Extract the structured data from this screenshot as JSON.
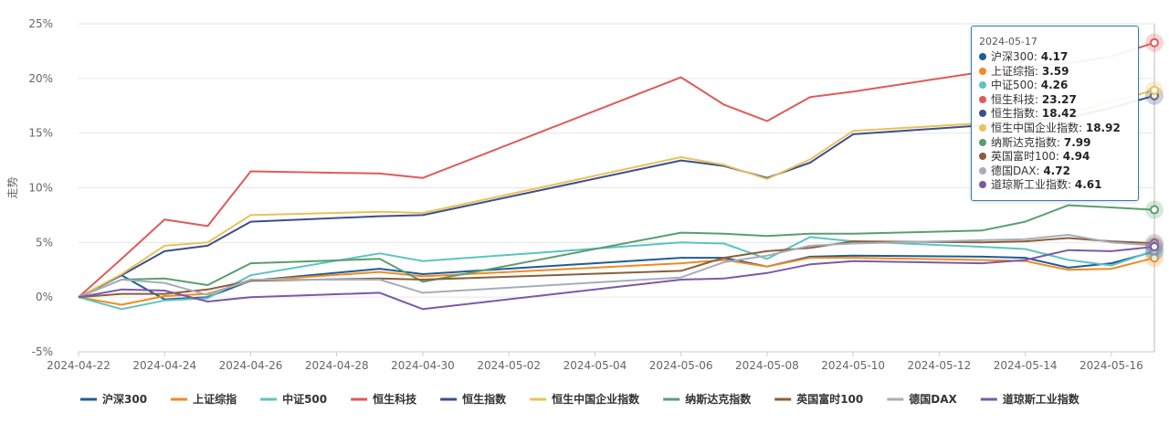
{
  "chart_data": {
    "type": "line",
    "title": "",
    "xlabel": "",
    "ylabel": "走势",
    "ylim": [
      -5,
      25
    ],
    "y_ticks": [
      "-5%",
      "0%",
      "5%",
      "10%",
      "15%",
      "20%",
      "25%"
    ],
    "x_tick_labels": [
      "2024-04-22",
      "2024-04-24",
      "2024-04-26",
      "2024-04-28",
      "2024-04-30",
      "2024-05-02",
      "2024-05-04",
      "2024-05-06",
      "2024-05-08",
      "2024-05-10",
      "2024-05-12",
      "2024-05-14",
      "2024-05-16"
    ],
    "x_range": [
      "2024-04-22",
      "2024-05-17"
    ],
    "grid": true,
    "legend_position": "bottom",
    "series": [
      {
        "name": "沪深300",
        "color": "#1f5c99",
        "points": [
          [
            "2024-04-22",
            0
          ],
          [
            "2024-04-23",
            2.0
          ],
          [
            "2024-04-24",
            -0.2
          ],
          [
            "2024-04-25",
            0
          ],
          [
            "2024-04-26",
            1.5
          ],
          [
            "2024-04-29",
            2.6
          ],
          [
            "2024-04-30",
            2.1
          ],
          [
            "2024-05-06",
            3.6
          ],
          [
            "2024-05-07",
            3.6
          ],
          [
            "2024-05-08",
            2.8
          ],
          [
            "2024-05-09",
            3.7
          ],
          [
            "2024-05-10",
            3.8
          ],
          [
            "2024-05-13",
            3.7
          ],
          [
            "2024-05-14",
            3.6
          ],
          [
            "2024-05-15",
            2.7
          ],
          [
            "2024-05-16",
            3.1
          ],
          [
            "2024-05-17",
            4.17
          ]
        ]
      },
      {
        "name": "上证综指",
        "color": "#f28a1e",
        "points": [
          [
            "2024-04-22",
            0
          ],
          [
            "2024-04-23",
            -0.7
          ],
          [
            "2024-04-24",
            0.1
          ],
          [
            "2024-04-25",
            0.3
          ],
          [
            "2024-04-26",
            1.5
          ],
          [
            "2024-04-29",
            2.3
          ],
          [
            "2024-04-30",
            1.9
          ],
          [
            "2024-05-06",
            3.1
          ],
          [
            "2024-05-07",
            3.4
          ],
          [
            "2024-05-08",
            2.8
          ],
          [
            "2024-05-09",
            3.6
          ],
          [
            "2024-05-10",
            3.6
          ],
          [
            "2024-05-13",
            3.4
          ],
          [
            "2024-05-14",
            3.3
          ],
          [
            "2024-05-15",
            2.5
          ],
          [
            "2024-05-16",
            2.6
          ],
          [
            "2024-05-17",
            3.59
          ]
        ]
      },
      {
        "name": "中证500",
        "color": "#5bc4c0",
        "points": [
          [
            "2024-04-22",
            0
          ],
          [
            "2024-04-23",
            -1.1
          ],
          [
            "2024-04-24",
            -0.3
          ],
          [
            "2024-04-25",
            -0.1
          ],
          [
            "2024-04-26",
            2.0
          ],
          [
            "2024-04-29",
            4.0
          ],
          [
            "2024-04-30",
            3.3
          ],
          [
            "2024-05-06",
            5.0
          ],
          [
            "2024-05-07",
            4.9
          ],
          [
            "2024-05-08",
            3.5
          ],
          [
            "2024-05-09",
            5.5
          ],
          [
            "2024-05-10",
            5.1
          ],
          [
            "2024-05-13",
            4.6
          ],
          [
            "2024-05-14",
            4.4
          ],
          [
            "2024-05-15",
            3.4
          ],
          [
            "2024-05-16",
            2.9
          ],
          [
            "2024-05-17",
            4.26
          ]
        ]
      },
      {
        "name": "恒生科技",
        "color": "#e05a5a",
        "points": [
          [
            "2024-04-22",
            0
          ],
          [
            "2024-04-23",
            3.5
          ],
          [
            "2024-04-24",
            7.1
          ],
          [
            "2024-04-25",
            6.5
          ],
          [
            "2024-04-26",
            11.5
          ],
          [
            "2024-04-29",
            11.3
          ],
          [
            "2024-04-30",
            10.9
          ],
          [
            "2024-05-06",
            20.1
          ],
          [
            "2024-05-07",
            17.6
          ],
          [
            "2024-05-08",
            16.1
          ],
          [
            "2024-05-09",
            18.3
          ],
          [
            "2024-05-10",
            18.8
          ],
          [
            "2024-05-13",
            20.6
          ],
          [
            "2024-05-14",
            21.1
          ],
          [
            "2024-05-15",
            21.4
          ],
          [
            "2024-05-16",
            22.0
          ],
          [
            "2024-05-17",
            23.27
          ]
        ]
      },
      {
        "name": "恒生指数",
        "color": "#3d4f8c",
        "points": [
          [
            "2024-04-22",
            0
          ],
          [
            "2024-04-23",
            2.0
          ],
          [
            "2024-04-24",
            4.2
          ],
          [
            "2024-04-25",
            4.7
          ],
          [
            "2024-04-26",
            6.9
          ],
          [
            "2024-04-29",
            7.4
          ],
          [
            "2024-04-30",
            7.5
          ],
          [
            "2024-05-06",
            12.5
          ],
          [
            "2024-05-07",
            12.0
          ],
          [
            "2024-05-08",
            10.9
          ],
          [
            "2024-05-09",
            12.3
          ],
          [
            "2024-05-10",
            14.9
          ],
          [
            "2024-05-13",
            15.7
          ],
          [
            "2024-05-14",
            16.1
          ],
          [
            "2024-05-15",
            16.4
          ],
          [
            "2024-05-16",
            17.3
          ],
          [
            "2024-05-17",
            18.42
          ]
        ]
      },
      {
        "name": "恒生中国企业指数",
        "color": "#e8c25a",
        "points": [
          [
            "2024-04-22",
            0
          ],
          [
            "2024-04-23",
            2.1
          ],
          [
            "2024-04-24",
            4.7
          ],
          [
            "2024-04-25",
            5.0
          ],
          [
            "2024-04-26",
            7.5
          ],
          [
            "2024-04-29",
            7.8
          ],
          [
            "2024-04-30",
            7.7
          ],
          [
            "2024-05-06",
            12.8
          ],
          [
            "2024-05-07",
            12.1
          ],
          [
            "2024-05-08",
            10.8
          ],
          [
            "2024-05-09",
            12.6
          ],
          [
            "2024-05-10",
            15.2
          ],
          [
            "2024-05-13",
            15.9
          ],
          [
            "2024-05-14",
            16.3
          ],
          [
            "2024-05-15",
            16.8
          ],
          [
            "2024-05-16",
            17.9
          ],
          [
            "2024-05-17",
            18.92
          ]
        ]
      },
      {
        "name": "纳斯达克指数",
        "color": "#5a9e6f",
        "points": [
          [
            "2024-04-22",
            0
          ],
          [
            "2024-04-23",
            1.6
          ],
          [
            "2024-04-24",
            1.7
          ],
          [
            "2024-04-25",
            1.1
          ],
          [
            "2024-04-26",
            3.1
          ],
          [
            "2024-04-29",
            3.5
          ],
          [
            "2024-04-30",
            1.4
          ],
          [
            "2024-05-06",
            5.9
          ],
          [
            "2024-05-07",
            5.8
          ],
          [
            "2024-05-08",
            5.6
          ],
          [
            "2024-05-09",
            5.8
          ],
          [
            "2024-05-10",
            5.8
          ],
          [
            "2024-05-13",
            6.1
          ],
          [
            "2024-05-14",
            6.9
          ],
          [
            "2024-05-15",
            8.4
          ],
          [
            "2024-05-16",
            8.2
          ],
          [
            "2024-05-17",
            7.99
          ]
        ]
      },
      {
        "name": "英国富时100",
        "color": "#8b5e3c",
        "points": [
          [
            "2024-04-22",
            0
          ],
          [
            "2024-04-23",
            0.3
          ],
          [
            "2024-04-24",
            0.3
          ],
          [
            "2024-04-25",
            0.7
          ],
          [
            "2024-04-26",
            1.5
          ],
          [
            "2024-04-29",
            1.7
          ],
          [
            "2024-04-30",
            1.6
          ],
          [
            "2024-05-06",
            2.4
          ],
          [
            "2024-05-07",
            3.6
          ],
          [
            "2024-05-08",
            4.2
          ],
          [
            "2024-05-09",
            4.5
          ],
          [
            "2024-05-10",
            5.1
          ],
          [
            "2024-05-13",
            5.0
          ],
          [
            "2024-05-14",
            5.1
          ],
          [
            "2024-05-15",
            5.4
          ],
          [
            "2024-05-16",
            5.1
          ],
          [
            "2024-05-17",
            4.94
          ]
        ]
      },
      {
        "name": "德国DAX",
        "color": "#a7adb8",
        "points": [
          [
            "2024-04-22",
            0
          ],
          [
            "2024-04-23",
            1.6
          ],
          [
            "2024-04-24",
            1.3
          ],
          [
            "2024-04-25",
            0.2
          ],
          [
            "2024-04-26",
            1.6
          ],
          [
            "2024-04-29",
            1.6
          ],
          [
            "2024-04-30",
            0.4
          ],
          [
            "2024-05-06",
            1.8
          ],
          [
            "2024-05-07",
            3.2
          ],
          [
            "2024-05-08",
            3.8
          ],
          [
            "2024-05-09",
            4.7
          ],
          [
            "2024-05-10",
            4.9
          ],
          [
            "2024-05-13",
            5.2
          ],
          [
            "2024-05-14",
            5.3
          ],
          [
            "2024-05-15",
            5.7
          ],
          [
            "2024-05-16",
            5.0
          ],
          [
            "2024-05-17",
            4.72
          ]
        ]
      },
      {
        "name": "道琼斯工业指数",
        "color": "#7a5aa6",
        "points": [
          [
            "2024-04-22",
            0
          ],
          [
            "2024-04-23",
            0.7
          ],
          [
            "2024-04-24",
            0.6
          ],
          [
            "2024-04-25",
            -0.4
          ],
          [
            "2024-04-26",
            0
          ],
          [
            "2024-04-29",
            0.4
          ],
          [
            "2024-04-30",
            -1.1
          ],
          [
            "2024-05-06",
            1.6
          ],
          [
            "2024-05-07",
            1.7
          ],
          [
            "2024-05-08",
            2.2
          ],
          [
            "2024-05-09",
            3.0
          ],
          [
            "2024-05-10",
            3.3
          ],
          [
            "2024-05-13",
            3.1
          ],
          [
            "2024-05-14",
            3.4
          ],
          [
            "2024-05-15",
            4.3
          ],
          [
            "2024-05-16",
            4.2
          ],
          [
            "2024-05-17",
            4.61
          ]
        ]
      }
    ],
    "tooltip": {
      "date": "2024-05-17",
      "items": [
        {
          "name": "沪深300",
          "value": "4.17"
        },
        {
          "name": "上证综指",
          "value": "3.59"
        },
        {
          "name": "中证500",
          "value": "4.26"
        },
        {
          "name": "恒生科技",
          "value": "23.27"
        },
        {
          "name": "恒生指数",
          "value": "18.42"
        },
        {
          "name": "恒生中国企业指数",
          "value": "18.92"
        },
        {
          "name": "纳斯达克指数",
          "value": "7.99"
        },
        {
          "name": "英国富时100",
          "value": "4.94"
        },
        {
          "name": "德国DAX",
          "value": "4.72"
        },
        {
          "name": "道琼斯工业指数",
          "value": "4.61"
        }
      ]
    }
  }
}
